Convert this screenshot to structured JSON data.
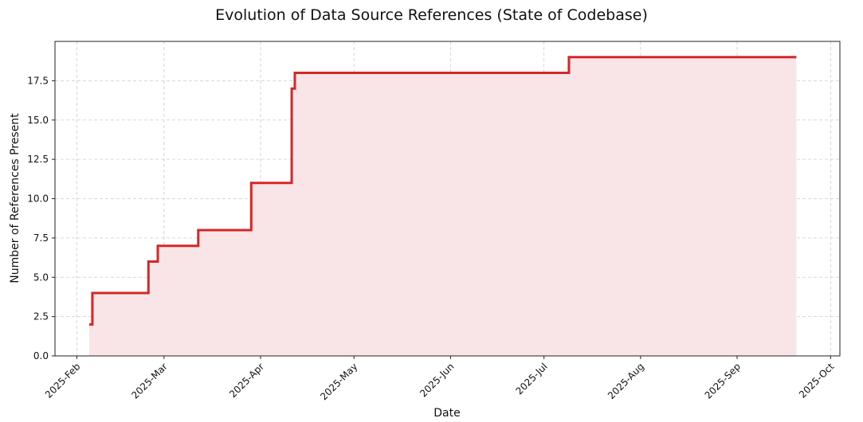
{
  "chart_data": {
    "type": "line",
    "title": "Evolution of Data Source References (State of Codebase)",
    "xlabel": "Date",
    "ylabel": "Number of References Present",
    "x_scale": "date",
    "xlim": [
      "2025-01-25",
      "2025-10-04"
    ],
    "ylim": [
      0,
      20
    ],
    "grid": true,
    "line_color": "#d62728",
    "fill_color": "#f9e5e7",
    "y_ticks": [
      0.0,
      2.5,
      5.0,
      7.5,
      10.0,
      12.5,
      15.0,
      17.5
    ],
    "y_tick_labels": [
      "0.0",
      "2.5",
      "5.0",
      "7.5",
      "10.0",
      "12.5",
      "15.0",
      "17.5"
    ],
    "x_ticks": [
      "2025-02-01",
      "2025-03-01",
      "2025-04-01",
      "2025-05-01",
      "2025-06-01",
      "2025-07-01",
      "2025-08-01",
      "2025-09-01",
      "2025-10-01"
    ],
    "x_tick_labels": [
      "2025-Feb",
      "2025-Mar",
      "2025-Apr",
      "2025-May",
      "2025-Jun",
      "2025-Jul",
      "2025-Aug",
      "2025-Sep",
      "2025-Oct"
    ],
    "series": [
      {
        "step": "post",
        "points": [
          {
            "x": "2025-02-05",
            "y": 2
          },
          {
            "x": "2025-02-06",
            "y": 4
          },
          {
            "x": "2025-02-24",
            "y": 6
          },
          {
            "x": "2025-02-27",
            "y": 7
          },
          {
            "x": "2025-03-12",
            "y": 8
          },
          {
            "x": "2025-03-29",
            "y": 11
          },
          {
            "x": "2025-04-11",
            "y": 17
          },
          {
            "x": "2025-04-12",
            "y": 18
          },
          {
            "x": "2025-07-09",
            "y": 19
          },
          {
            "x": "2025-09-20",
            "y": 19
          }
        ]
      }
    ]
  }
}
